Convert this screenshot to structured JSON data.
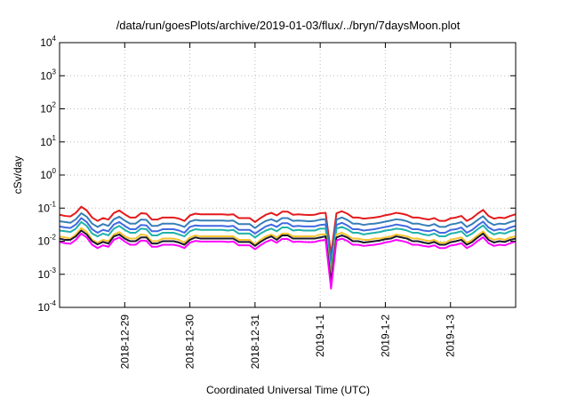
{
  "chart_data": {
    "type": "line",
    "title": "/data/run/goesPlots/archive/2019-01-03/flux/../bryn/7daysMoon.plot",
    "xlabel": "Coordinated Universal Time (UTC)",
    "ylabel": "cSv/day",
    "y_scale": "log",
    "ylim": [
      0.0001,
      10000
    ],
    "y_ticks": [
      {
        "value": 0.0001,
        "base": "10",
        "exp": "-4"
      },
      {
        "value": 0.001,
        "base": "10",
        "exp": "-3"
      },
      {
        "value": 0.01,
        "base": "10",
        "exp": "-2"
      },
      {
        "value": 0.1,
        "base": "10",
        "exp": "-1"
      },
      {
        "value": 1,
        "base": "10",
        "exp": "0"
      },
      {
        "value": 10,
        "base": "10",
        "exp": "1"
      },
      {
        "value": 100,
        "base": "10",
        "exp": "2"
      },
      {
        "value": 1000,
        "base": "10",
        "exp": "3"
      },
      {
        "value": 10000,
        "base": "10",
        "exp": "4"
      }
    ],
    "xlim": [
      "2018-12-28T00:00",
      "2019-01-04T00:00"
    ],
    "x_ticks": [
      {
        "value": "2018-12-29T00:00",
        "label": "2018-12-29"
      },
      {
        "value": "2018-12-30T00:00",
        "label": "2018-12-30"
      },
      {
        "value": "2018-12-31T00:00",
        "label": "2018-12-31"
      },
      {
        "value": "2019-01-01T00:00",
        "label": "2019-1-1"
      },
      {
        "value": "2019-01-02T00:00",
        "label": "2019-1-2"
      },
      {
        "value": "2019-01-03T00:00",
        "label": "2019-1-3"
      }
    ],
    "grid": true,
    "x": [
      "2018-12-28T00:00",
      "2018-12-28T02:00",
      "2018-12-28T04:00",
      "2018-12-28T06:00",
      "2018-12-28T08:00",
      "2018-12-28T10:00",
      "2018-12-28T12:00",
      "2018-12-28T14:00",
      "2018-12-28T16:00",
      "2018-12-28T18:00",
      "2018-12-28T20:00",
      "2018-12-28T22:00",
      "2018-12-29T00:00",
      "2018-12-29T02:00",
      "2018-12-29T04:00",
      "2018-12-29T06:00",
      "2018-12-29T08:00",
      "2018-12-29T10:00",
      "2018-12-29T12:00",
      "2018-12-29T14:00",
      "2018-12-29T16:00",
      "2018-12-29T18:00",
      "2018-12-29T20:00",
      "2018-12-29T22:00",
      "2018-12-30T00:00",
      "2018-12-30T02:00",
      "2018-12-30T04:00",
      "2018-12-30T06:00",
      "2018-12-30T08:00",
      "2018-12-30T10:00",
      "2018-12-30T12:00",
      "2018-12-30T14:00",
      "2018-12-30T16:00",
      "2018-12-30T18:00",
      "2018-12-30T20:00",
      "2018-12-30T22:00",
      "2018-12-31T00:00",
      "2018-12-31T02:00",
      "2018-12-31T04:00",
      "2018-12-31T06:00",
      "2018-12-31T08:00",
      "2018-12-31T10:00",
      "2018-12-31T12:00",
      "2018-12-31T14:00",
      "2018-12-31T16:00",
      "2018-12-31T18:00",
      "2018-12-31T20:00",
      "2018-12-31T22:00",
      "2019-01-01T00:00",
      "2019-01-01T02:00",
      "2019-01-01T04:00",
      "2019-01-01T06:00",
      "2019-01-01T08:00",
      "2019-01-01T10:00",
      "2019-01-01T12:00",
      "2019-01-01T14:00",
      "2019-01-01T16:00",
      "2019-01-01T18:00",
      "2019-01-01T20:00",
      "2019-01-01T22:00",
      "2019-01-02T00:00",
      "2019-01-02T02:00",
      "2019-01-02T04:00",
      "2019-01-02T06:00",
      "2019-01-02T08:00",
      "2019-01-02T10:00",
      "2019-01-02T12:00",
      "2019-01-02T14:00",
      "2019-01-02T16:00",
      "2019-01-02T18:00",
      "2019-01-02T20:00",
      "2019-01-02T22:00",
      "2019-01-03T00:00",
      "2019-01-03T02:00",
      "2019-01-03T04:00",
      "2019-01-03T06:00",
      "2019-01-03T08:00",
      "2019-01-03T10:00",
      "2019-01-03T12:00",
      "2019-01-03T14:00",
      "2019-01-03T16:00",
      "2019-01-03T18:00",
      "2019-01-03T20:00",
      "2019-01-03T22:00",
      "2019-01-04T00:00"
    ],
    "series": [
      {
        "color": "#e41a1c",
        "values": [
          0.063,
          0.058,
          0.056,
          0.072,
          0.11,
          0.085,
          0.052,
          0.041,
          0.05,
          0.045,
          0.071,
          0.085,
          0.065,
          0.052,
          0.052,
          0.07,
          0.068,
          0.045,
          0.045,
          0.052,
          0.052,
          0.052,
          0.048,
          0.041,
          0.06,
          0.068,
          0.065,
          0.065,
          0.065,
          0.065,
          0.065,
          0.063,
          0.065,
          0.05,
          0.05,
          0.05,
          0.038,
          0.05,
          0.063,
          0.072,
          0.06,
          0.078,
          0.078,
          0.063,
          0.065,
          0.063,
          0.062,
          0.063,
          0.07,
          0.072,
          0.004,
          0.07,
          0.08,
          0.068,
          0.052,
          0.052,
          0.048,
          0.05,
          0.052,
          0.055,
          0.061,
          0.065,
          0.072,
          0.068,
          0.062,
          0.052,
          0.052,
          0.048,
          0.045,
          0.05,
          0.041,
          0.041,
          0.049,
          0.052,
          0.058,
          0.041,
          0.05,
          0.068,
          0.088,
          0.058,
          0.048,
          0.052,
          0.05,
          0.058,
          0.065
        ]
      },
      {
        "color": "#377eb8",
        "values": [
          0.04,
          0.038,
          0.036,
          0.046,
          0.07,
          0.055,
          0.034,
          0.027,
          0.033,
          0.029,
          0.046,
          0.055,
          0.042,
          0.034,
          0.034,
          0.045,
          0.044,
          0.029,
          0.029,
          0.034,
          0.034,
          0.034,
          0.031,
          0.027,
          0.039,
          0.044,
          0.042,
          0.042,
          0.042,
          0.042,
          0.042,
          0.041,
          0.042,
          0.033,
          0.033,
          0.033,
          0.025,
          0.033,
          0.041,
          0.046,
          0.039,
          0.05,
          0.05,
          0.041,
          0.042,
          0.041,
          0.04,
          0.041,
          0.045,
          0.046,
          0.0025,
          0.045,
          0.052,
          0.044,
          0.034,
          0.034,
          0.031,
          0.033,
          0.034,
          0.036,
          0.039,
          0.042,
          0.046,
          0.044,
          0.04,
          0.034,
          0.034,
          0.031,
          0.029,
          0.033,
          0.027,
          0.027,
          0.032,
          0.034,
          0.038,
          0.027,
          0.033,
          0.044,
          0.057,
          0.038,
          0.031,
          0.034,
          0.033,
          0.038,
          0.042
        ]
      },
      {
        "color": "#4169e1",
        "values": [
          0.028,
          0.026,
          0.025,
          0.032,
          0.05,
          0.038,
          0.023,
          0.018,
          0.022,
          0.02,
          0.032,
          0.038,
          0.029,
          0.023,
          0.023,
          0.031,
          0.03,
          0.02,
          0.02,
          0.023,
          0.023,
          0.023,
          0.021,
          0.018,
          0.027,
          0.03,
          0.029,
          0.029,
          0.029,
          0.029,
          0.029,
          0.028,
          0.029,
          0.022,
          0.022,
          0.022,
          0.017,
          0.022,
          0.028,
          0.032,
          0.027,
          0.035,
          0.035,
          0.028,
          0.029,
          0.028,
          0.028,
          0.028,
          0.031,
          0.032,
          0.0018,
          0.031,
          0.036,
          0.03,
          0.023,
          0.023,
          0.021,
          0.022,
          0.023,
          0.025,
          0.027,
          0.029,
          0.032,
          0.03,
          0.028,
          0.023,
          0.023,
          0.021,
          0.02,
          0.022,
          0.018,
          0.018,
          0.022,
          0.023,
          0.026,
          0.018,
          0.022,
          0.03,
          0.039,
          0.026,
          0.021,
          0.023,
          0.022,
          0.026,
          0.029
        ]
      },
      {
        "color": "#20b2aa",
        "values": [
          0.021,
          0.02,
          0.019,
          0.024,
          0.038,
          0.029,
          0.017,
          0.014,
          0.017,
          0.015,
          0.024,
          0.029,
          0.022,
          0.018,
          0.018,
          0.024,
          0.023,
          0.015,
          0.015,
          0.018,
          0.018,
          0.018,
          0.016,
          0.014,
          0.02,
          0.023,
          0.022,
          0.022,
          0.022,
          0.022,
          0.022,
          0.021,
          0.022,
          0.017,
          0.017,
          0.017,
          0.013,
          0.017,
          0.021,
          0.024,
          0.02,
          0.026,
          0.026,
          0.021,
          0.022,
          0.021,
          0.021,
          0.021,
          0.024,
          0.024,
          0.0012,
          0.024,
          0.027,
          0.023,
          0.018,
          0.018,
          0.016,
          0.017,
          0.018,
          0.019,
          0.021,
          0.022,
          0.024,
          0.023,
          0.021,
          0.018,
          0.018,
          0.016,
          0.015,
          0.017,
          0.014,
          0.014,
          0.017,
          0.018,
          0.02,
          0.014,
          0.017,
          0.023,
          0.03,
          0.02,
          0.016,
          0.018,
          0.017,
          0.02,
          0.022
        ]
      },
      {
        "color": "#f4c430",
        "values": [
          0.014,
          0.013,
          0.012,
          0.016,
          0.025,
          0.019,
          0.011,
          0.009,
          0.011,
          0.01,
          0.016,
          0.019,
          0.014,
          0.012,
          0.012,
          0.016,
          0.015,
          0.01,
          0.01,
          0.012,
          0.012,
          0.012,
          0.011,
          0.009,
          0.013,
          0.015,
          0.014,
          0.014,
          0.014,
          0.014,
          0.014,
          0.014,
          0.014,
          0.011,
          0.011,
          0.011,
          0.008,
          0.011,
          0.014,
          0.016,
          0.013,
          0.017,
          0.017,
          0.014,
          0.014,
          0.014,
          0.014,
          0.014,
          0.016,
          0.016,
          0.0008,
          0.016,
          0.018,
          0.015,
          0.012,
          0.012,
          0.011,
          0.011,
          0.012,
          0.012,
          0.013,
          0.014,
          0.016,
          0.015,
          0.014,
          0.012,
          0.012,
          0.011,
          0.01,
          0.011,
          0.009,
          0.009,
          0.011,
          0.012,
          0.013,
          0.009,
          0.011,
          0.015,
          0.02,
          0.013,
          0.011,
          0.012,
          0.011,
          0.013,
          0.014
        ]
      },
      {
        "color": "#1a1a2e",
        "values": [
          0.012,
          0.011,
          0.011,
          0.014,
          0.021,
          0.016,
          0.01,
          0.008,
          0.0095,
          0.0085,
          0.014,
          0.016,
          0.012,
          0.01,
          0.01,
          0.013,
          0.013,
          0.0085,
          0.0085,
          0.01,
          0.01,
          0.01,
          0.0091,
          0.0078,
          0.011,
          0.013,
          0.012,
          0.012,
          0.012,
          0.012,
          0.012,
          0.012,
          0.012,
          0.0095,
          0.0095,
          0.0095,
          0.0072,
          0.0095,
          0.012,
          0.014,
          0.011,
          0.015,
          0.015,
          0.012,
          0.012,
          0.012,
          0.012,
          0.012,
          0.013,
          0.014,
          0.0006,
          0.013,
          0.015,
          0.013,
          0.01,
          0.01,
          0.0091,
          0.0095,
          0.01,
          0.0105,
          0.0115,
          0.012,
          0.014,
          0.013,
          0.012,
          0.01,
          0.01,
          0.0091,
          0.0085,
          0.0095,
          0.0078,
          0.0078,
          0.0093,
          0.01,
          0.011,
          0.0078,
          0.0095,
          0.013,
          0.017,
          0.011,
          0.0091,
          0.01,
          0.0095,
          0.011,
          0.012
        ]
      },
      {
        "color": "#ff00ff",
        "values": [
          0.0095,
          0.0087,
          0.0084,
          0.011,
          0.017,
          0.013,
          0.0078,
          0.0062,
          0.0075,
          0.0068,
          0.011,
          0.013,
          0.0098,
          0.0078,
          0.0078,
          0.0105,
          0.0102,
          0.0068,
          0.0068,
          0.0078,
          0.0078,
          0.0078,
          0.0072,
          0.0062,
          0.009,
          0.0102,
          0.0098,
          0.0098,
          0.0098,
          0.0098,
          0.0098,
          0.0095,
          0.0098,
          0.0075,
          0.0075,
          0.0075,
          0.0057,
          0.0075,
          0.0095,
          0.011,
          0.009,
          0.0117,
          0.0117,
          0.0095,
          0.0098,
          0.0095,
          0.0093,
          0.0095,
          0.0105,
          0.011,
          0.00037,
          0.0105,
          0.012,
          0.0102,
          0.0078,
          0.0078,
          0.0072,
          0.0075,
          0.0078,
          0.0083,
          0.0092,
          0.0098,
          0.011,
          0.0102,
          0.0093,
          0.0078,
          0.0078,
          0.0072,
          0.0068,
          0.0075,
          0.0062,
          0.0062,
          0.0074,
          0.0078,
          0.0087,
          0.0062,
          0.0075,
          0.0102,
          0.0132,
          0.0087,
          0.0072,
          0.0078,
          0.0075,
          0.0087,
          0.0098
        ]
      }
    ]
  }
}
